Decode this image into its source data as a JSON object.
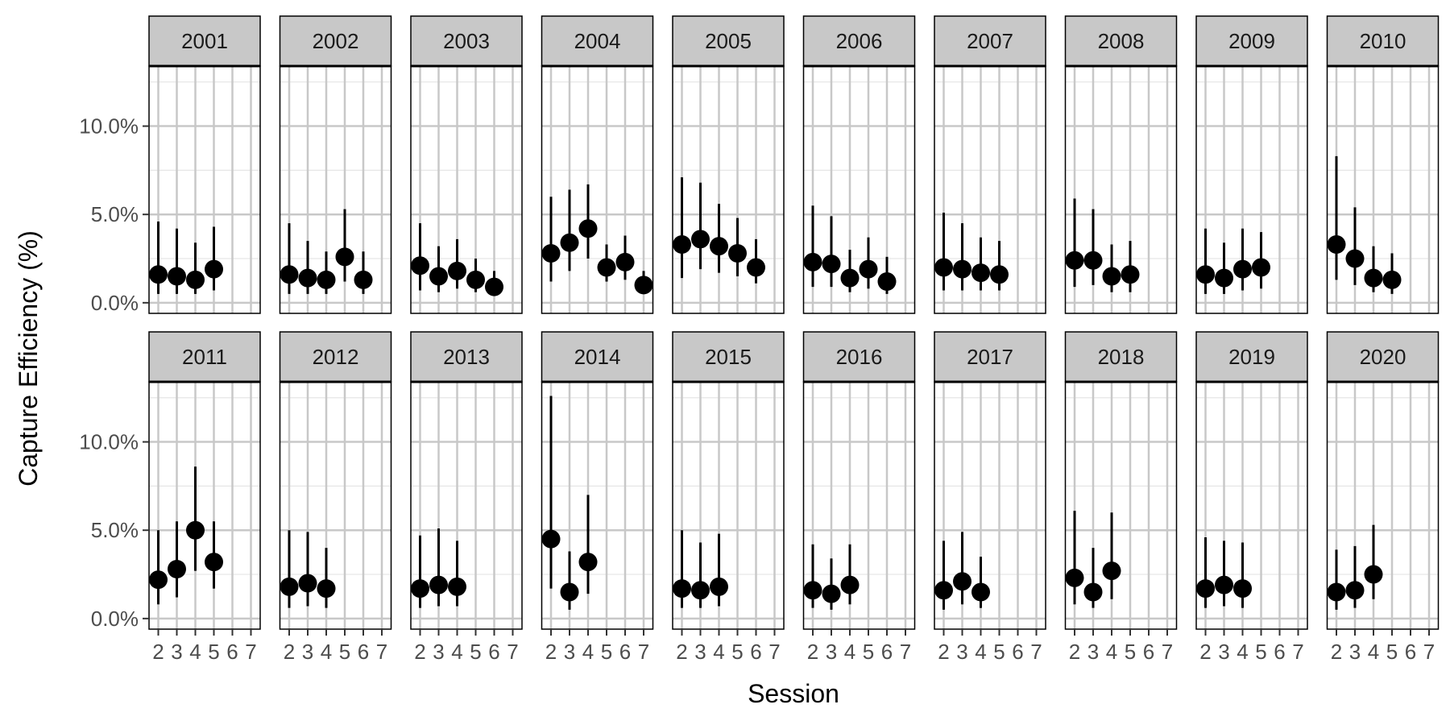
{
  "chart_data": {
    "type": "scatter",
    "style": "faceted point-range (point estimate with vertical interval)",
    "xlabel": "Session",
    "ylabel": "Capture Efficiency (%)",
    "x_ticks": [
      "2",
      "3",
      "4",
      "5",
      "6",
      "7"
    ],
    "xlim": [
      1.5,
      7.5
    ],
    "y_ticks": [
      "0.0%",
      "5.0%",
      "10.0%"
    ],
    "y_tick_values": [
      0,
      5,
      10
    ],
    "ylim": [
      -0.6,
      13.4
    ],
    "grid": true,
    "facet_layout": "2 rows x 10 columns",
    "colors": {
      "points": "#000000",
      "strip_background": "#c8c8c8",
      "grid_major": "#c8c8c8",
      "grid_minor": "#e6e6e6",
      "panel_border": "#000000"
    },
    "facets": [
      {
        "label": "2001",
        "points": [
          {
            "x": 2,
            "y": 1.6,
            "lo": 0.5,
            "hi": 4.6
          },
          {
            "x": 3,
            "y": 1.5,
            "lo": 0.5,
            "hi": 4.2
          },
          {
            "x": 4,
            "y": 1.3,
            "lo": 0.5,
            "hi": 3.4
          },
          {
            "x": 5,
            "y": 1.9,
            "lo": 0.7,
            "hi": 4.3
          }
        ]
      },
      {
        "label": "2002",
        "points": [
          {
            "x": 2,
            "y": 1.6,
            "lo": 0.5,
            "hi": 4.5
          },
          {
            "x": 3,
            "y": 1.4,
            "lo": 0.5,
            "hi": 3.5
          },
          {
            "x": 4,
            "y": 1.3,
            "lo": 0.5,
            "hi": 2.9
          },
          {
            "x": 5,
            "y": 2.6,
            "lo": 1.2,
            "hi": 5.3
          },
          {
            "x": 6,
            "y": 1.3,
            "lo": 0.5,
            "hi": 2.9
          }
        ]
      },
      {
        "label": "2003",
        "points": [
          {
            "x": 2,
            "y": 2.1,
            "lo": 0.7,
            "hi": 4.5
          },
          {
            "x": 3,
            "y": 1.5,
            "lo": 0.6,
            "hi": 3.2
          },
          {
            "x": 4,
            "y": 1.8,
            "lo": 0.8,
            "hi": 3.6
          },
          {
            "x": 5,
            "y": 1.3,
            "lo": 0.6,
            "hi": 2.5
          },
          {
            "x": 6,
            "y": 0.9,
            "lo": 0.4,
            "hi": 1.8
          }
        ]
      },
      {
        "label": "2004",
        "points": [
          {
            "x": 2,
            "y": 2.8,
            "lo": 1.2,
            "hi": 6.0
          },
          {
            "x": 3,
            "y": 3.4,
            "lo": 1.8,
            "hi": 6.4
          },
          {
            "x": 4,
            "y": 4.2,
            "lo": 2.5,
            "hi": 6.7
          },
          {
            "x": 5,
            "y": 2.0,
            "lo": 1.2,
            "hi": 3.3
          },
          {
            "x": 6,
            "y": 2.3,
            "lo": 1.3,
            "hi": 3.8
          },
          {
            "x": 7,
            "y": 1.0,
            "lo": 0.5,
            "hi": 1.8
          }
        ]
      },
      {
        "label": "2005",
        "points": [
          {
            "x": 2,
            "y": 3.3,
            "lo": 1.4,
            "hi": 7.1
          },
          {
            "x": 3,
            "y": 3.6,
            "lo": 1.9,
            "hi": 6.8
          },
          {
            "x": 4,
            "y": 3.2,
            "lo": 1.7,
            "hi": 5.6
          },
          {
            "x": 5,
            "y": 2.8,
            "lo": 1.5,
            "hi": 4.8
          },
          {
            "x": 6,
            "y": 2.0,
            "lo": 1.1,
            "hi": 3.6
          }
        ]
      },
      {
        "label": "2006",
        "points": [
          {
            "x": 2,
            "y": 2.3,
            "lo": 0.9,
            "hi": 5.5
          },
          {
            "x": 3,
            "y": 2.2,
            "lo": 0.9,
            "hi": 4.9
          },
          {
            "x": 4,
            "y": 1.4,
            "lo": 0.6,
            "hi": 3.0
          },
          {
            "x": 5,
            "y": 1.9,
            "lo": 0.8,
            "hi": 3.7
          },
          {
            "x": 6,
            "y": 1.2,
            "lo": 0.5,
            "hi": 2.6
          }
        ]
      },
      {
        "label": "2007",
        "points": [
          {
            "x": 2,
            "y": 2.0,
            "lo": 0.7,
            "hi": 5.1
          },
          {
            "x": 3,
            "y": 1.9,
            "lo": 0.7,
            "hi": 4.5
          },
          {
            "x": 4,
            "y": 1.7,
            "lo": 0.7,
            "hi": 3.7
          },
          {
            "x": 5,
            "y": 1.6,
            "lo": 0.7,
            "hi": 3.5
          }
        ]
      },
      {
        "label": "2008",
        "points": [
          {
            "x": 2,
            "y": 2.4,
            "lo": 0.9,
            "hi": 5.9
          },
          {
            "x": 3,
            "y": 2.4,
            "lo": 1.0,
            "hi": 5.3
          },
          {
            "x": 4,
            "y": 1.5,
            "lo": 0.6,
            "hi": 3.3
          },
          {
            "x": 5,
            "y": 1.6,
            "lo": 0.6,
            "hi": 3.5
          }
        ]
      },
      {
        "label": "2009",
        "points": [
          {
            "x": 2,
            "y": 1.6,
            "lo": 0.5,
            "hi": 4.2
          },
          {
            "x": 3,
            "y": 1.4,
            "lo": 0.5,
            "hi": 3.4
          },
          {
            "x": 4,
            "y": 1.9,
            "lo": 0.7,
            "hi": 4.2
          },
          {
            "x": 5,
            "y": 2.0,
            "lo": 0.8,
            "hi": 4.0
          }
        ]
      },
      {
        "label": "2010",
        "points": [
          {
            "x": 2,
            "y": 3.3,
            "lo": 1.3,
            "hi": 8.3
          },
          {
            "x": 3,
            "y": 2.5,
            "lo": 1.0,
            "hi": 5.4
          },
          {
            "x": 4,
            "y": 1.4,
            "lo": 0.6,
            "hi": 3.2
          },
          {
            "x": 5,
            "y": 1.3,
            "lo": 0.5,
            "hi": 2.8
          }
        ]
      },
      {
        "label": "2011",
        "points": [
          {
            "x": 2,
            "y": 2.2,
            "lo": 0.8,
            "hi": 5.0
          },
          {
            "x": 3,
            "y": 2.8,
            "lo": 1.2,
            "hi": 5.5
          },
          {
            "x": 4,
            "y": 5.0,
            "lo": 2.7,
            "hi": 8.6
          },
          {
            "x": 5,
            "y": 3.2,
            "lo": 1.7,
            "hi": 5.5
          }
        ]
      },
      {
        "label": "2012",
        "points": [
          {
            "x": 2,
            "y": 1.8,
            "lo": 0.6,
            "hi": 5.0
          },
          {
            "x": 3,
            "y": 2.0,
            "lo": 0.7,
            "hi": 4.9
          },
          {
            "x": 4,
            "y": 1.7,
            "lo": 0.6,
            "hi": 4.0
          }
        ]
      },
      {
        "label": "2013",
        "points": [
          {
            "x": 2,
            "y": 1.7,
            "lo": 0.6,
            "hi": 4.7
          },
          {
            "x": 3,
            "y": 1.9,
            "lo": 0.7,
            "hi": 5.1
          },
          {
            "x": 4,
            "y": 1.8,
            "lo": 0.7,
            "hi": 4.4
          }
        ]
      },
      {
        "label": "2014",
        "points": [
          {
            "x": 2,
            "y": 4.5,
            "lo": 1.7,
            "hi": 12.6
          },
          {
            "x": 3,
            "y": 1.5,
            "lo": 0.5,
            "hi": 3.8
          },
          {
            "x": 4,
            "y": 3.2,
            "lo": 1.4,
            "hi": 7.0
          }
        ]
      },
      {
        "label": "2015",
        "points": [
          {
            "x": 2,
            "y": 1.7,
            "lo": 0.6,
            "hi": 5.0
          },
          {
            "x": 3,
            "y": 1.6,
            "lo": 0.6,
            "hi": 4.3
          },
          {
            "x": 4,
            "y": 1.8,
            "lo": 0.7,
            "hi": 4.8
          }
        ]
      },
      {
        "label": "2016",
        "points": [
          {
            "x": 2,
            "y": 1.6,
            "lo": 0.6,
            "hi": 4.2
          },
          {
            "x": 3,
            "y": 1.4,
            "lo": 0.5,
            "hi": 3.4
          },
          {
            "x": 4,
            "y": 1.9,
            "lo": 0.8,
            "hi": 4.2
          }
        ]
      },
      {
        "label": "2017",
        "points": [
          {
            "x": 2,
            "y": 1.6,
            "lo": 0.5,
            "hi": 4.4
          },
          {
            "x": 3,
            "y": 2.1,
            "lo": 0.8,
            "hi": 4.9
          },
          {
            "x": 4,
            "y": 1.5,
            "lo": 0.6,
            "hi": 3.5
          }
        ]
      },
      {
        "label": "2018",
        "points": [
          {
            "x": 2,
            "y": 2.3,
            "lo": 0.8,
            "hi": 6.1
          },
          {
            "x": 3,
            "y": 1.5,
            "lo": 0.6,
            "hi": 4.0
          },
          {
            "x": 4,
            "y": 2.7,
            "lo": 1.1,
            "hi": 6.0
          }
        ]
      },
      {
        "label": "2019",
        "points": [
          {
            "x": 2,
            "y": 1.7,
            "lo": 0.6,
            "hi": 4.6
          },
          {
            "x": 3,
            "y": 1.9,
            "lo": 0.7,
            "hi": 4.4
          },
          {
            "x": 4,
            "y": 1.7,
            "lo": 0.6,
            "hi": 4.3
          }
        ]
      },
      {
        "label": "2020",
        "points": [
          {
            "x": 2,
            "y": 1.5,
            "lo": 0.5,
            "hi": 3.9
          },
          {
            "x": 3,
            "y": 1.6,
            "lo": 0.6,
            "hi": 4.1
          },
          {
            "x": 4,
            "y": 2.5,
            "lo": 1.1,
            "hi": 5.3
          }
        ]
      }
    ]
  }
}
